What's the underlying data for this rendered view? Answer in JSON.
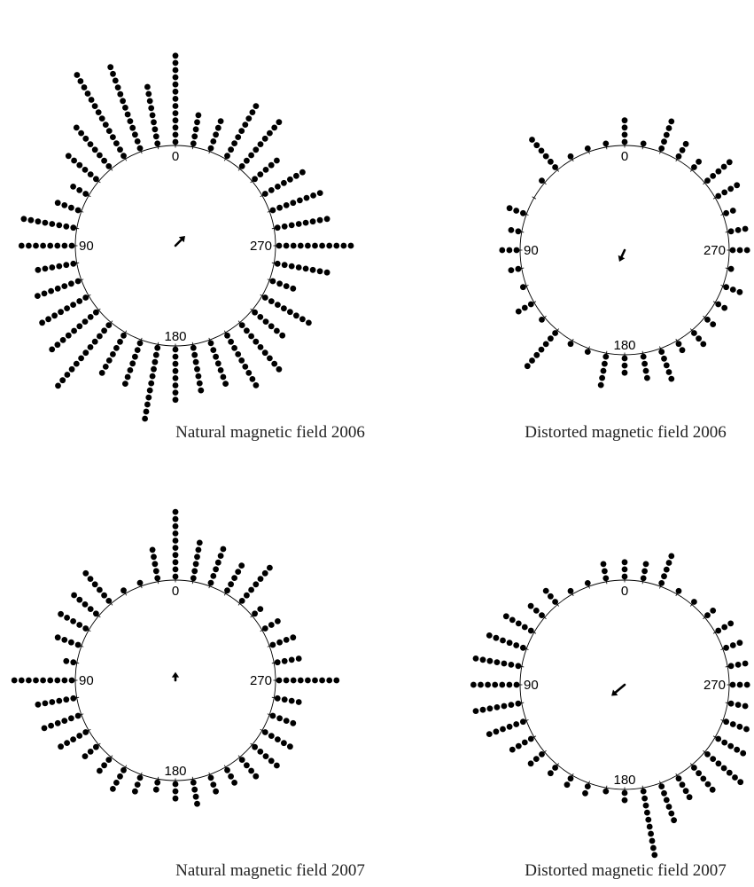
{
  "chart_data": [
    {
      "type": "scatter",
      "subtype": "circular-dot-histogram",
      "caption": "Natural magnetic field 2006",
      "axis_labels": [
        "0",
        "90",
        "180",
        "270"
      ],
      "bin_width_deg": 10,
      "bins_deg": [
        0,
        10,
        20,
        30,
        40,
        50,
        60,
        70,
        80,
        90,
        100,
        110,
        120,
        130,
        140,
        150,
        160,
        170,
        180,
        190,
        200,
        210,
        220,
        230,
        240,
        250,
        260,
        270,
        280,
        290,
        300,
        310,
        320,
        330,
        340,
        350
      ],
      "counts": [
        13,
        9,
        13,
        14,
        8,
        6,
        3,
        4,
        8,
        8,
        6,
        7,
        8,
        9,
        12,
        7,
        7,
        11,
        8,
        7,
        7,
        9,
        9,
        6,
        8,
        4,
        8,
        11,
        8,
        8,
        7,
        5,
        9,
        9,
        5,
        5
      ],
      "mean_vector": {
        "direction_deg": 315,
        "length": 0.25
      }
    },
    {
      "type": "scatter",
      "subtype": "circular-dot-histogram",
      "caption": "Distorted magnetic field 2006",
      "axis_labels": [
        "0",
        "90",
        "180",
        "270"
      ],
      "bin_width_deg": 10,
      "bins_deg": [
        0,
        10,
        20,
        30,
        40,
        50,
        60,
        70,
        80,
        90,
        100,
        110,
        120,
        130,
        140,
        150,
        160,
        170,
        180,
        190,
        200,
        210,
        220,
        230,
        240,
        250,
        260,
        270,
        280,
        290,
        300,
        310,
        320,
        330,
        340,
        350
      ],
      "counts": [
        4,
        1,
        1,
        1,
        6,
        1,
        0,
        3,
        2,
        3,
        2,
        1,
        3,
        1,
        7,
        1,
        1,
        5,
        3,
        4,
        5,
        2,
        3,
        2,
        2,
        3,
        1,
        6,
        3,
        2,
        4,
        5,
        2,
        3,
        5,
        1
      ],
      "mean_vector": {
        "direction_deg": 155,
        "length": 0.22
      }
    },
    {
      "type": "scatter",
      "subtype": "circular-dot-histogram",
      "caption": "Natural magnetic field 2007",
      "axis_labels": [
        "0",
        "90",
        "180",
        "270"
      ],
      "bin_width_deg": 10,
      "bins_deg": [
        0,
        10,
        20,
        30,
        40,
        50,
        60,
        70,
        80,
        90,
        100,
        110,
        120,
        130,
        140,
        150,
        160,
        170,
        180,
        190,
        200,
        210,
        220,
        230,
        240,
        250,
        260,
        270,
        280,
        290,
        300,
        310,
        320,
        330,
        340,
        350
      ],
      "counts": [
        10,
        5,
        1,
        1,
        6,
        5,
        5,
        4,
        2,
        9,
        6,
        6,
        5,
        3,
        3,
        4,
        3,
        2,
        3,
        4,
        3,
        3,
        4,
        5,
        5,
        4,
        4,
        9,
        4,
        4,
        3,
        2,
        7,
        5,
        6,
        6
      ],
      "mean_vector": {
        "direction_deg": 0,
        "length": 0.15
      }
    },
    {
      "type": "scatter",
      "subtype": "circular-dot-histogram",
      "caption": "Distorted magnetic field 2007",
      "axis_labels": [
        "0",
        "90",
        "180",
        "270"
      ],
      "bin_width_deg": 10,
      "bins_deg": [
        0,
        10,
        20,
        30,
        40,
        50,
        60,
        70,
        80,
        90,
        100,
        110,
        120,
        130,
        140,
        150,
        160,
        170,
        180,
        190,
        200,
        210,
        220,
        230,
        240,
        250,
        260,
        270,
        280,
        290,
        300,
        310,
        320,
        330,
        340,
        350
      ],
      "counts": [
        3,
        3,
        1,
        1,
        3,
        3,
        5,
        6,
        7,
        7,
        7,
        6,
        4,
        3,
        2,
        2,
        2,
        1,
        2,
        10,
        6,
        4,
        5,
        7,
        7,
        6,
        7,
        6,
        5,
        3,
        3,
        2,
        1,
        1,
        5,
        3
      ],
      "mean_vector": {
        "direction_deg": 130,
        "length": 0.3
      }
    }
  ]
}
